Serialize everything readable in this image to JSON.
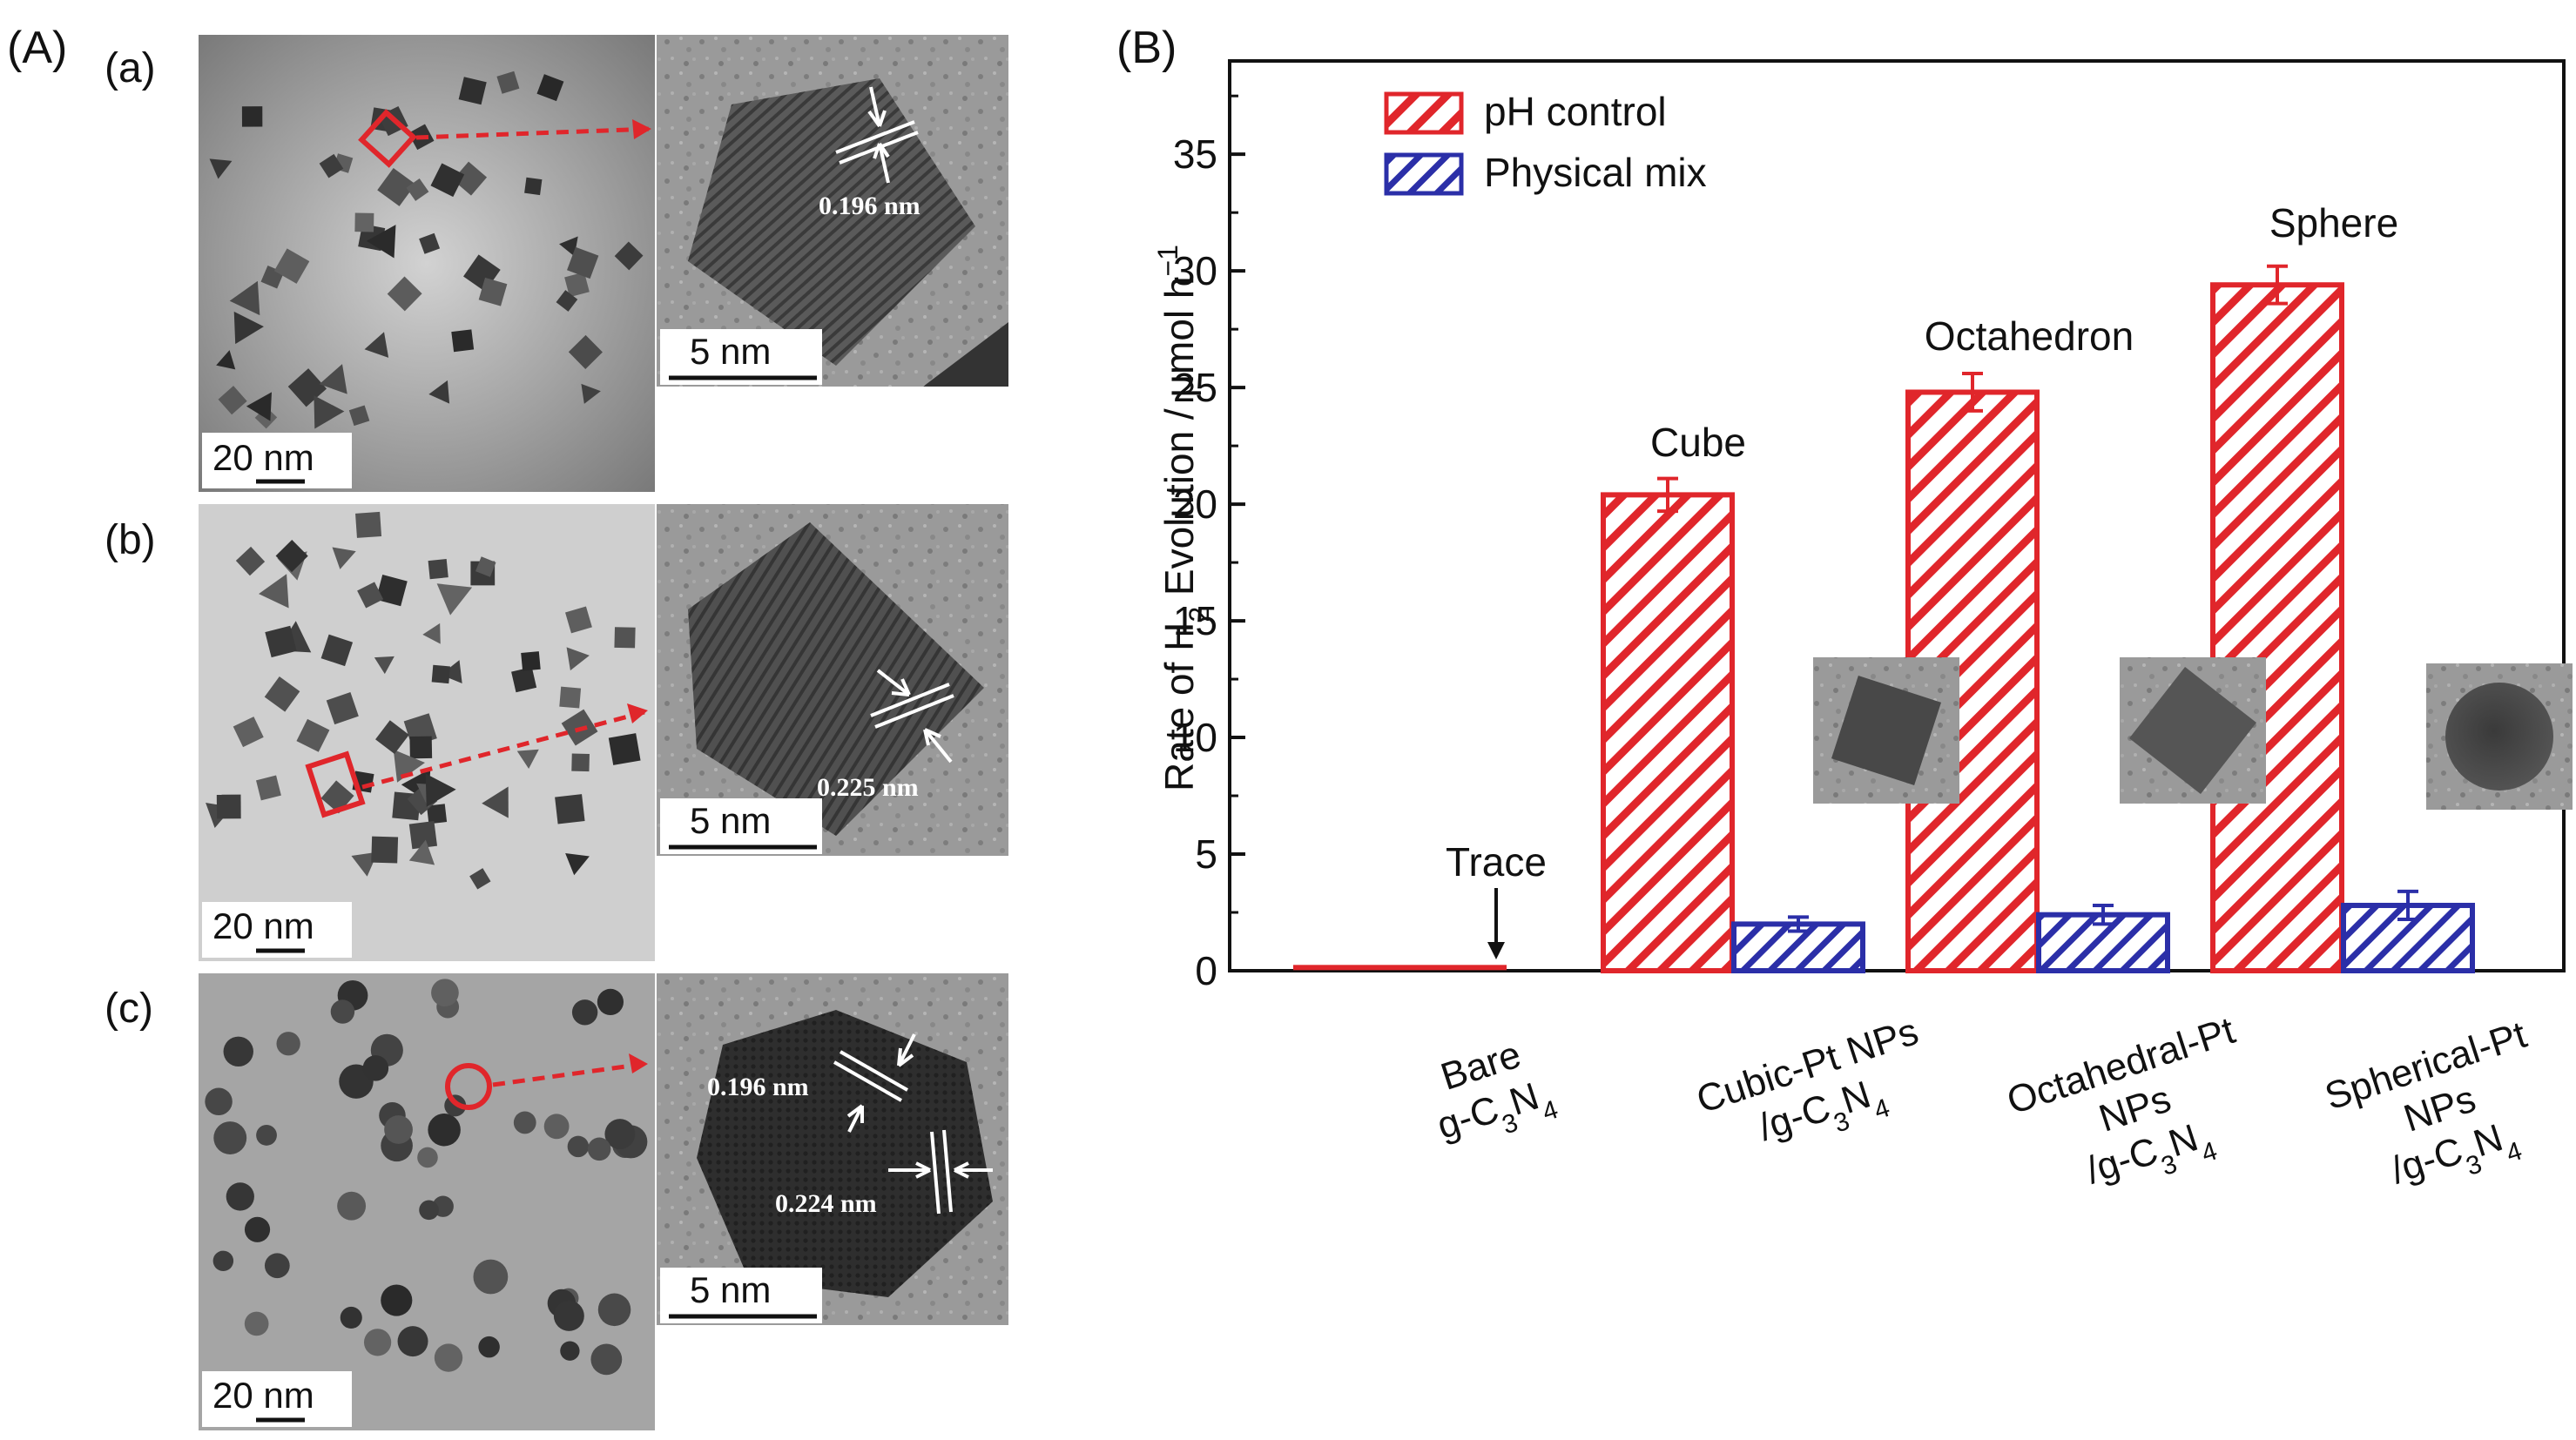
{
  "panel_a": {
    "label": "(A)",
    "rows": [
      {
        "label": "(a)",
        "overview_scale": "20 nm",
        "hrtem_scale": "5 nm",
        "lattice_labels": [
          "0.196 nm"
        ],
        "marker_shape": "square"
      },
      {
        "label": "(b)",
        "overview_scale": "20 nm",
        "hrtem_scale": "5 nm",
        "lattice_labels": [
          "0.225 nm"
        ],
        "marker_shape": "square"
      },
      {
        "label": "(c)",
        "overview_scale": "20 nm",
        "hrtem_scale": "5 nm",
        "lattice_labels": [
          "0.196 nm",
          "0.224 nm"
        ],
        "marker_shape": "circle"
      }
    ]
  },
  "panel_b": {
    "label": "(B)"
  },
  "colors": {
    "red": "#e0262b",
    "blue": "#2b2fa8",
    "axis": "#111111",
    "micrograph_light": "#b8b8b8",
    "micrograph_dark": "#4a4a4a"
  },
  "chart_data": {
    "type": "bar",
    "title": "",
    "xlabel": "",
    "ylabel_parts": {
      "pre": "Rate of H",
      "sub": "2",
      "post": " Evolution / μmol h",
      "sup": "−1"
    },
    "ylim": [
      0,
      39
    ],
    "yticks": [
      0,
      5,
      10,
      15,
      20,
      25,
      30,
      35
    ],
    "legend_position": "top-left",
    "categories": [
      {
        "lines": [
          [
            [
              "Bare",
              ""
            ]
          ],
          [
            [
              "g-C",
              ""
            ],
            [
              "3",
              "sub"
            ],
            [
              "N",
              ""
            ],
            [
              "4",
              "sub"
            ]
          ]
        ]
      },
      {
        "lines": [
          [
            [
              "Cubic-Pt NPs",
              ""
            ]
          ],
          [
            [
              "/g-C",
              ""
            ],
            [
              "3",
              "sub"
            ],
            [
              "N",
              ""
            ],
            [
              "4",
              "sub"
            ]
          ]
        ]
      },
      {
        "lines": [
          [
            [
              "Octahedral-Pt",
              ""
            ]
          ],
          [
            [
              "NPs",
              ""
            ]
          ],
          [
            [
              "/g-C",
              ""
            ],
            [
              "3",
              "sub"
            ],
            [
              "N",
              ""
            ],
            [
              "4",
              "sub"
            ]
          ]
        ]
      },
      {
        "lines": [
          [
            [
              "Spherical-Pt",
              ""
            ]
          ],
          [
            [
              "NPs",
              ""
            ]
          ],
          [
            [
              "/g-C",
              ""
            ],
            [
              "3",
              "sub"
            ],
            [
              "N",
              ""
            ],
            [
              "4",
              "sub"
            ]
          ]
        ]
      }
    ],
    "series": [
      {
        "name": "pH control",
        "color": "#e0262b",
        "values": [
          0.1,
          20.4,
          24.8,
          29.4
        ],
        "errors": [
          0,
          0.7,
          0.8,
          0.8
        ]
      },
      {
        "name": "Physical mix",
        "color": "#2b2fa8",
        "values": [
          null,
          2.0,
          2.4,
          2.8
        ],
        "errors": [
          0,
          0.3,
          0.4,
          0.6
        ]
      }
    ],
    "annotations": [
      {
        "text": "Trace",
        "category": 0,
        "arrow": true
      },
      {
        "text": "Cube",
        "category": 1
      },
      {
        "text": "Octahedron",
        "category": 2
      },
      {
        "text": "Sphere",
        "category": 3
      }
    ]
  }
}
